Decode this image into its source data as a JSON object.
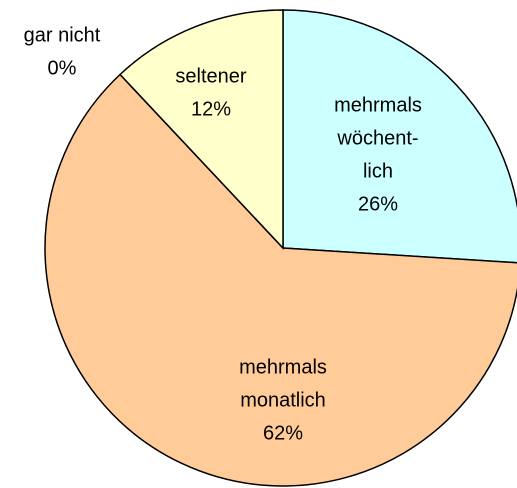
{
  "chart_data": {
    "type": "pie",
    "categories": [
      [
        "mehrmals",
        "wöchent-",
        "lich"
      ],
      [
        "mehrmals",
        "monatlich"
      ],
      [
        "gar nicht"
      ],
      [
        "seltener"
      ]
    ],
    "values": [
      26,
      62,
      0,
      12
    ],
    "value_labels": [
      "26%",
      "62%",
      "0%",
      "12%"
    ],
    "colors": [
      "#ccffff",
      "#ffcc99",
      "#cccccc",
      "#ffffcc"
    ],
    "start_angle": 0,
    "direction": "clockwise"
  }
}
